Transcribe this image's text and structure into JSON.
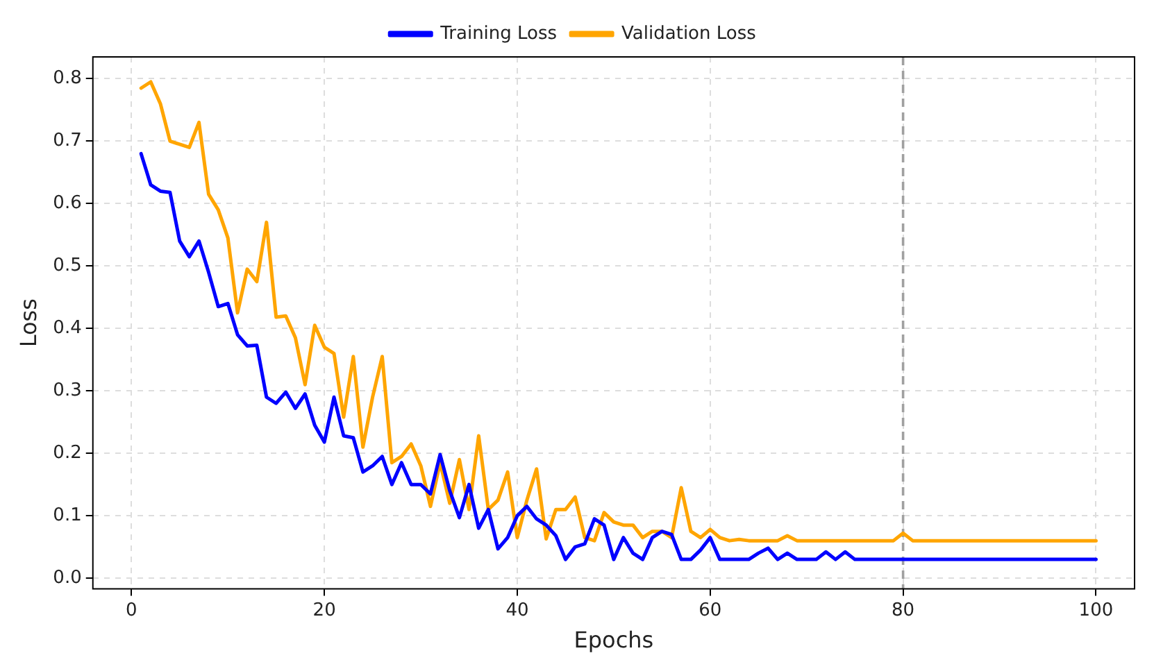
{
  "chart_data": {
    "type": "line",
    "xlabel": "Epochs",
    "ylabel": "Loss",
    "x": [
      1,
      2,
      3,
      4,
      5,
      6,
      7,
      8,
      9,
      10,
      11,
      12,
      13,
      14,
      15,
      16,
      17,
      18,
      19,
      20,
      21,
      22,
      23,
      24,
      25,
      26,
      27,
      28,
      29,
      30,
      31,
      32,
      33,
      34,
      35,
      36,
      37,
      38,
      39,
      40,
      41,
      42,
      43,
      44,
      45,
      46,
      47,
      48,
      49,
      50,
      51,
      52,
      53,
      54,
      55,
      56,
      57,
      58,
      59,
      60,
      61,
      62,
      63,
      64,
      65,
      66,
      67,
      68,
      69,
      70,
      71,
      72,
      73,
      74,
      75,
      76,
      77,
      78,
      79,
      80,
      81,
      82,
      83,
      84,
      85,
      86,
      87,
      88,
      89,
      90,
      91,
      92,
      93,
      94,
      95,
      96,
      97,
      98,
      99,
      100
    ],
    "series": [
      {
        "name": "Training Loss",
        "color": "#0000ff",
        "values": [
          0.68,
          0.63,
          0.62,
          0.618,
          0.54,
          0.515,
          0.54,
          0.49,
          0.435,
          0.44,
          0.39,
          0.372,
          0.373,
          0.29,
          0.28,
          0.298,
          0.272,
          0.295,
          0.245,
          0.218,
          0.29,
          0.228,
          0.225,
          0.17,
          0.18,
          0.195,
          0.15,
          0.185,
          0.15,
          0.15,
          0.135,
          0.198,
          0.14,
          0.097,
          0.15,
          0.08,
          0.11,
          0.047,
          0.065,
          0.1,
          0.115,
          0.095,
          0.085,
          0.068,
          0.03,
          0.05,
          0.055,
          0.095,
          0.085,
          0.03,
          0.065,
          0.04,
          0.03,
          0.065,
          0.075,
          0.07,
          0.03,
          0.03,
          0.045,
          0.065,
          0.03,
          0.03,
          0.03,
          0.03,
          0.04,
          0.048,
          0.03,
          0.04,
          0.03,
          0.03,
          0.03,
          0.042,
          0.03,
          0.042,
          0.03,
          0.03,
          0.03,
          0.03,
          0.03,
          0.03,
          0.03,
          0.03,
          0.03,
          0.03,
          0.03,
          0.03,
          0.03,
          0.03,
          0.03,
          0.03,
          0.03,
          0.03,
          0.03,
          0.03,
          0.03,
          0.03,
          0.03,
          0.03,
          0.03,
          0.03
        ]
      },
      {
        "name": "Validation Loss",
        "color": "#ffa500",
        "values": [
          0.785,
          0.795,
          0.76,
          0.7,
          0.695,
          0.69,
          0.73,
          0.615,
          0.59,
          0.545,
          0.425,
          0.495,
          0.475,
          0.57,
          0.418,
          0.42,
          0.385,
          0.31,
          0.405,
          0.37,
          0.36,
          0.258,
          0.355,
          0.21,
          0.29,
          0.355,
          0.185,
          0.195,
          0.215,
          0.18,
          0.115,
          0.185,
          0.12,
          0.19,
          0.11,
          0.228,
          0.11,
          0.125,
          0.17,
          0.065,
          0.125,
          0.175,
          0.063,
          0.11,
          0.11,
          0.13,
          0.065,
          0.06,
          0.105,
          0.09,
          0.085,
          0.085,
          0.065,
          0.075,
          0.075,
          0.065,
          0.145,
          0.075,
          0.065,
          0.078,
          0.065,
          0.06,
          0.062,
          0.06,
          0.06,
          0.06,
          0.06,
          0.068,
          0.06,
          0.06,
          0.06,
          0.06,
          0.06,
          0.06,
          0.06,
          0.06,
          0.06,
          0.06,
          0.06,
          0.072,
          0.06,
          0.06,
          0.06,
          0.06,
          0.06,
          0.06,
          0.06,
          0.06,
          0.06,
          0.06,
          0.06,
          0.06,
          0.06,
          0.06,
          0.06,
          0.06,
          0.06,
          0.06,
          0.06,
          0.06
        ]
      }
    ],
    "xlim": [
      -4,
      104
    ],
    "xticks": [
      0,
      20,
      40,
      60,
      80,
      100
    ],
    "ylim": [
      -0.017,
      0.835
    ],
    "yticks": [
      {
        "value": 0,
        "label": "0.0"
      },
      0.1,
      0.2,
      0.3,
      0.4,
      0.5,
      0.6,
      0.7,
      0.8
    ],
    "ref_lines": [
      {
        "axis": "x",
        "value": 80,
        "color": "#a0a0a0",
        "line_style": "dashed"
      }
    ],
    "grid": true,
    "legend": "top",
    "marker": "none",
    "line_style": "solid"
  }
}
